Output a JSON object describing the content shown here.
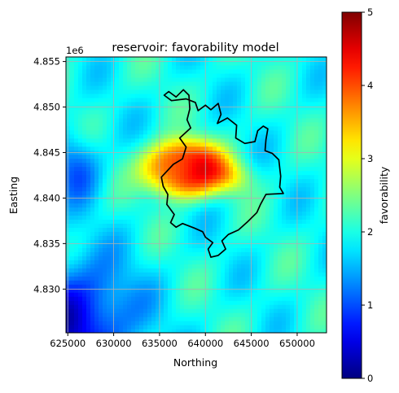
{
  "chart_data": {
    "type": "heatmap",
    "title": "reservoir: favorability model",
    "xlabel": "Northing",
    "ylabel": "Easting",
    "y_offset_label": "1e6",
    "xlim": [
      624800,
      653200
    ],
    "ylim": [
      4825200,
      4855500
    ],
    "x_ticks": [
      625000,
      630000,
      635000,
      640000,
      645000,
      650000
    ],
    "x_tick_labels": [
      "625000",
      "630000",
      "635000",
      "640000",
      "645000",
      "650000"
    ],
    "y_ticks": [
      4830000,
      4835000,
      4840000,
      4845000,
      4850000,
      4855000
    ],
    "y_tick_labels": [
      "4.830",
      "4.835",
      "4.840",
      "4.845",
      "4.850",
      "4.855"
    ],
    "grid": true,
    "colormap": "jet",
    "colorbar": {
      "label": "favorability",
      "range": [
        0,
        5
      ],
      "ticks": [
        0,
        1,
        2,
        3,
        4,
        5
      ],
      "tick_labels": [
        "0",
        "1",
        "2",
        "3",
        "4",
        "5"
      ]
    },
    "field": {
      "background": 1.95,
      "high_center": [
        637800,
        4843300
      ],
      "high_peak": 4.35,
      "high_radius": [
        4700,
        3300
      ],
      "core_center": [
        643200,
        4842300
      ],
      "core_peak": 4.7,
      "core_radius": [
        2200,
        1900
      ],
      "low_corner": [
        625500,
        4826500
      ],
      "low_value": 0.4,
      "low_west_center": [
        626000,
        4843500
      ],
      "low_west_value": 1.1,
      "northeast_value": 2.2
    },
    "boundary": {
      "name": "reservoir outline",
      "color": "#000000",
      "points": [
        [
          638200,
          4851300
        ],
        [
          637600,
          4851900
        ],
        [
          636800,
          4851100
        ],
        [
          636000,
          4851700
        ],
        [
          635500,
          4851300
        ],
        [
          636300,
          4850700
        ],
        [
          637900,
          4850900
        ],
        [
          638900,
          4850500
        ],
        [
          639200,
          4849600
        ],
        [
          640000,
          4850200
        ],
        [
          640600,
          4849700
        ],
        [
          641400,
          4850400
        ],
        [
          641700,
          4849200
        ],
        [
          641300,
          4848200
        ],
        [
          642400,
          4848800
        ],
        [
          643400,
          4848000
        ],
        [
          643300,
          4846600
        ],
        [
          644300,
          4846000
        ],
        [
          645400,
          4846200
        ],
        [
          645700,
          4847400
        ],
        [
          646300,
          4847900
        ],
        [
          646800,
          4847600
        ],
        [
          646600,
          4846400
        ],
        [
          646500,
          4845200
        ],
        [
          647300,
          4844900
        ],
        [
          648000,
          4844200
        ],
        [
          648200,
          4842400
        ],
        [
          648100,
          4841200
        ],
        [
          648500,
          4840500
        ],
        [
          646600,
          4840400
        ],
        [
          646000,
          4839300
        ],
        [
          645600,
          4838400
        ],
        [
          644600,
          4837400
        ],
        [
          643600,
          4836500
        ],
        [
          642500,
          4836000
        ],
        [
          641800,
          4835300
        ],
        [
          642200,
          4834400
        ],
        [
          641400,
          4833700
        ],
        [
          640600,
          4833500
        ],
        [
          640300,
          4834400
        ],
        [
          640800,
          4835100
        ],
        [
          640000,
          4835700
        ],
        [
          639700,
          4836300
        ],
        [
          638800,
          4836700
        ],
        [
          637500,
          4837200
        ],
        [
          636800,
          4836800
        ],
        [
          636200,
          4837300
        ],
        [
          636600,
          4838200
        ],
        [
          635800,
          4839300
        ],
        [
          635900,
          4840400
        ],
        [
          635400,
          4841300
        ],
        [
          635200,
          4842300
        ],
        [
          636500,
          4843700
        ],
        [
          637500,
          4844300
        ],
        [
          637900,
          4845600
        ],
        [
          637200,
          4846600
        ],
        [
          638400,
          4847700
        ],
        [
          638000,
          4848600
        ],
        [
          638300,
          4849800
        ],
        [
          638200,
          4851300
        ]
      ]
    }
  }
}
